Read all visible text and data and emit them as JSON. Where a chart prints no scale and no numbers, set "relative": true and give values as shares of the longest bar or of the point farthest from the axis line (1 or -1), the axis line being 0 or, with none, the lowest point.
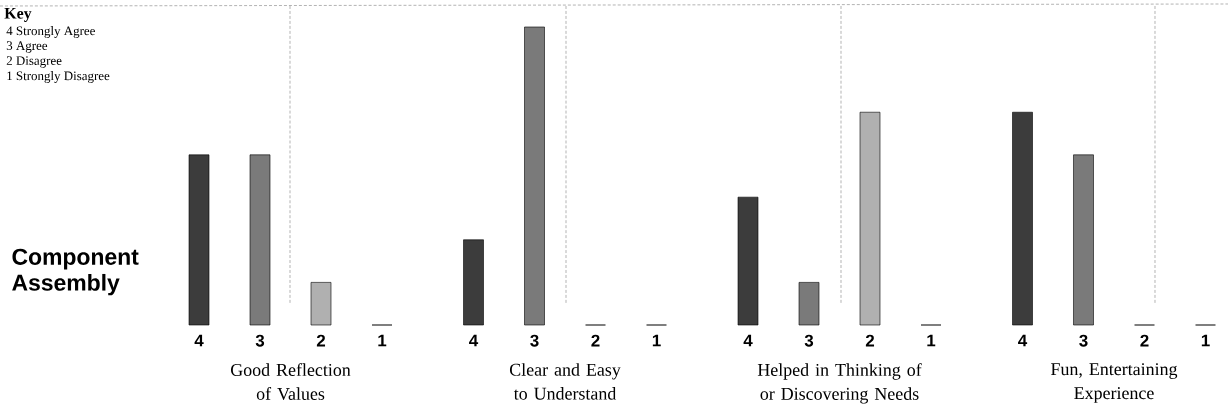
{
  "chart_data": {
    "type": "bar",
    "relative": true,
    "ylabel": "Component Assembly",
    "categories": [
      "4",
      "3",
      "2",
      "1",
      "4",
      "3",
      "2",
      "1",
      "4",
      "3",
      "2",
      "1",
      "4",
      "3",
      "2",
      "1"
    ],
    "values": [
      0.571,
      0.571,
      0.143,
      0,
      0.286,
      1,
      0,
      0,
      0.429,
      0.143,
      0.714,
      0,
      0.714,
      0.571,
      0,
      0
    ],
    "colors": [
      "#3c3c3c",
      "#7a7a7a",
      "#b0b0b0",
      "#000000",
      "#3c3c3c",
      "#7a7a7a",
      "#b0b0b0",
      "#000000",
      "#3c3c3c",
      "#7a7a7a",
      "#b0b0b0",
      "#000000",
      "#3c3c3c",
      "#7a7a7a",
      "#b0b0b0",
      "#000000"
    ],
    "annotations": [
      "Key",
      "4 Strongly Agree",
      "3 Agree",
      "2 Disagree",
      "1 Strongly Disagree",
      "Good Reflection of Values",
      "Clear and Easy to Understand",
      "Helped in Thinking of or Discovering Needs",
      "Fun, Entertaining Experience"
    ]
  }
}
